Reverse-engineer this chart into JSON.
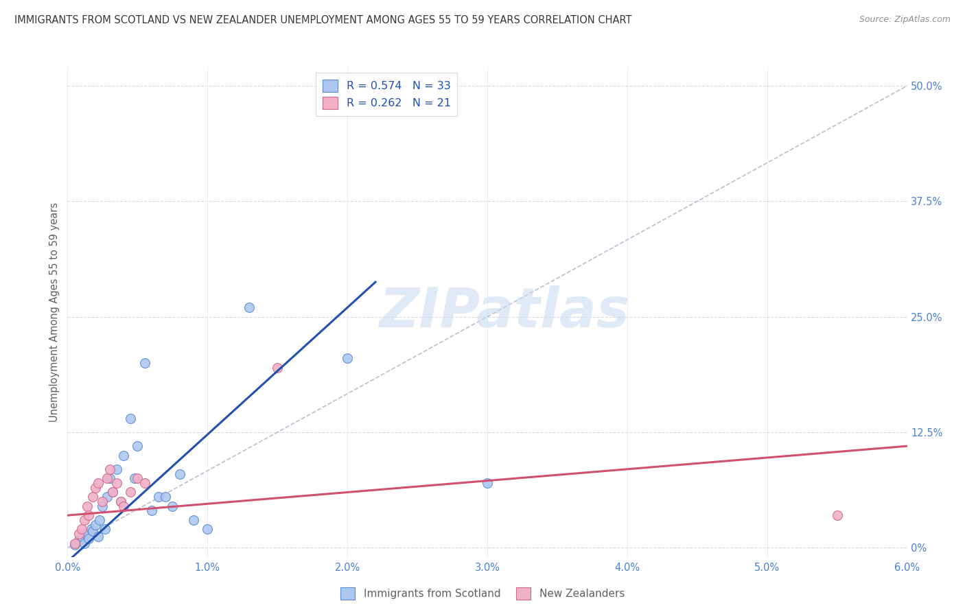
{
  "title": "IMMIGRANTS FROM SCOTLAND VS NEW ZEALANDER UNEMPLOYMENT AMONG AGES 55 TO 59 YEARS CORRELATION CHART",
  "source": "Source: ZipAtlas.com",
  "ylabel_left": "Unemployment Among Ages 55 to 59 years",
  "x_tick_labels": [
    "0.0%",
    "1.0%",
    "2.0%",
    "3.0%",
    "4.0%",
    "5.0%",
    "6.0%"
  ],
  "x_tick_values": [
    0.0,
    1.0,
    2.0,
    3.0,
    4.0,
    5.0,
    6.0
  ],
  "y_tick_labels_right": [
    "0%",
    "12.5%",
    "25.0%",
    "37.5%",
    "50.0%"
  ],
  "y_tick_values": [
    0,
    12.5,
    25.0,
    37.5,
    50.0
  ],
  "xlim": [
    0.0,
    6.0
  ],
  "ylim": [
    -1.0,
    52.0
  ],
  "legend_label_scotland": "Immigrants from Scotland",
  "legend_label_nz": "New Zealanders",
  "legend_color_scotland": "#adc8f0",
  "legend_color_nz": "#f0b0c8",
  "scotland_dots": [
    [
      0.05,
      0.3
    ],
    [
      0.08,
      0.8
    ],
    [
      0.1,
      1.2
    ],
    [
      0.12,
      0.5
    ],
    [
      0.13,
      1.5
    ],
    [
      0.15,
      1.0
    ],
    [
      0.17,
      2.0
    ],
    [
      0.18,
      1.8
    ],
    [
      0.2,
      2.5
    ],
    [
      0.22,
      1.2
    ],
    [
      0.23,
      3.0
    ],
    [
      0.25,
      4.5
    ],
    [
      0.27,
      2.0
    ],
    [
      0.28,
      5.5
    ],
    [
      0.3,
      7.5
    ],
    [
      0.32,
      6.0
    ],
    [
      0.35,
      8.5
    ],
    [
      0.38,
      5.0
    ],
    [
      0.4,
      10.0
    ],
    [
      0.45,
      14.0
    ],
    [
      0.48,
      7.5
    ],
    [
      0.5,
      11.0
    ],
    [
      0.55,
      20.0
    ],
    [
      0.6,
      4.0
    ],
    [
      0.65,
      5.5
    ],
    [
      0.7,
      5.5
    ],
    [
      0.75,
      4.5
    ],
    [
      0.8,
      8.0
    ],
    [
      0.9,
      3.0
    ],
    [
      1.0,
      2.0
    ],
    [
      1.3,
      26.0
    ],
    [
      2.0,
      20.5
    ],
    [
      3.0,
      7.0
    ]
  ],
  "nz_dots": [
    [
      0.05,
      0.5
    ],
    [
      0.08,
      1.5
    ],
    [
      0.1,
      2.0
    ],
    [
      0.12,
      3.0
    ],
    [
      0.14,
      4.5
    ],
    [
      0.15,
      3.5
    ],
    [
      0.18,
      5.5
    ],
    [
      0.2,
      6.5
    ],
    [
      0.22,
      7.0
    ],
    [
      0.25,
      5.0
    ],
    [
      0.28,
      7.5
    ],
    [
      0.3,
      8.5
    ],
    [
      0.32,
      6.0
    ],
    [
      0.35,
      7.0
    ],
    [
      0.38,
      5.0
    ],
    [
      0.4,
      4.5
    ],
    [
      0.45,
      6.0
    ],
    [
      0.5,
      7.5
    ],
    [
      0.55,
      7.0
    ],
    [
      1.5,
      19.5
    ],
    [
      5.5,
      3.5
    ]
  ],
  "blue_line_x": [
    0.0,
    2.0
  ],
  "blue_line_y": [
    -1.5,
    26.0
  ],
  "pink_line_x": [
    0.0,
    6.0
  ],
  "pink_line_y": [
    3.5,
    11.0
  ],
  "blue_line_color": "#2050b0",
  "pink_line_color": "#d05070",
  "diagonal_line_color": "#b0b8c8",
  "background_color": "#ffffff",
  "grid_color": "#d8d8e8",
  "title_color": "#383838",
  "tick_color_right": "#4a80d0",
  "tick_color_bottom": "#4a80d0",
  "scatter_size": 100,
  "watermark_text": "ZIPatlas",
  "watermark_color": "#c8d8f0",
  "watermark_fontsize": 58
}
